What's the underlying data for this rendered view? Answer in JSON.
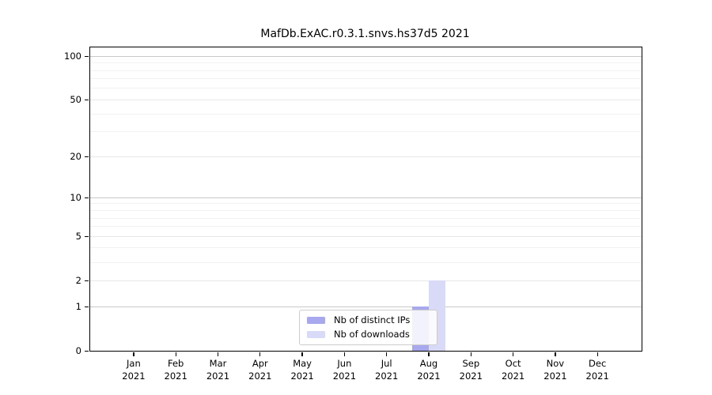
{
  "chart_data": {
    "type": "bar",
    "title": "MafDb.ExAC.r0.3.1.snvs.hs37d5 2021",
    "categories": [
      "Jan",
      "Feb",
      "Mar",
      "Apr",
      "May",
      "Jun",
      "Jul",
      "Aug",
      "Sep",
      "Oct",
      "Nov",
      "Dec"
    ],
    "year_label": "2021",
    "series": [
      {
        "name": "Nb of distinct IPs",
        "color": "#a8a8ee",
        "values": [
          0,
          0,
          0,
          0,
          0,
          0,
          0,
          1,
          0,
          0,
          0,
          0
        ]
      },
      {
        "name": "Nb of downloads",
        "color": "#d9d9f8",
        "values": [
          0,
          0,
          0,
          0,
          0,
          0,
          0,
          2,
          0,
          0,
          0,
          0
        ]
      }
    ],
    "xlabel": "",
    "ylabel": "",
    "yscale": "log(1+x)",
    "ylim": [
      0,
      115
    ],
    "yticks": {
      "values": [
        0,
        1,
        2,
        5,
        10,
        20,
        50,
        100
      ],
      "labels": [
        "0",
        "1",
        "2",
        "5",
        "10",
        "20",
        "50",
        "100"
      ]
    },
    "yticks_minor": [
      3,
      4,
      6,
      7,
      8,
      9,
      30,
      40,
      60,
      70,
      80,
      90
    ],
    "grid": "horizontal",
    "legend_position": "lower center-right inside plot",
    "colors": {
      "axis": "#000000",
      "grid_power10": "#c9c9c9",
      "grid_major": "#e7e7e7",
      "grid_minor": "#f2f2f2",
      "background": "#ffffff",
      "legend_border": "#cccccc"
    }
  }
}
